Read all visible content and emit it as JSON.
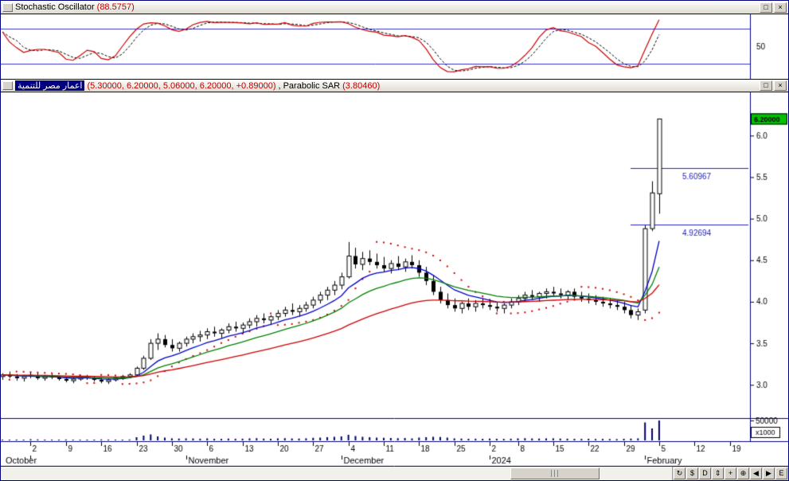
{
  "stoch_panel": {
    "title": "Stochastic Oscillator ",
    "value_text": "(88.5757)",
    "axis_label": "50"
  },
  "main_panel": {
    "security_name": "اعمار مصر للتنمية",
    "ohlc_text": "(5.30000, 6.20000, 5.06000, 6.20000, +0.89000)",
    "sar_label": ", Parabolic SAR ",
    "sar_value_text": "(3.80460)",
    "last_price_badge": "6.20000",
    "hlines": [
      {
        "value": 5.60967,
        "label": "5.60967"
      },
      {
        "value": 4.92694,
        "label": "4.92694"
      }
    ]
  },
  "window_controls": {
    "restore_glyph": "□",
    "close_glyph": "×"
  },
  "toolbar": {
    "buttons": [
      {
        "name": "refresh-button",
        "glyph": "↻"
      },
      {
        "name": "price-display-button",
        "glyph": "$"
      },
      {
        "name": "periodicity-daily-button",
        "glyph": "D"
      },
      {
        "name": "rescale-button",
        "glyph": "⇕"
      },
      {
        "name": "crosshair-button",
        "glyph": "+"
      },
      {
        "name": "zoom-in-button",
        "glyph": "⊕"
      },
      {
        "name": "scroll-left-button",
        "glyph": "◀"
      },
      {
        "name": "scroll-right-button",
        "glyph": "▶"
      },
      {
        "name": "explorer-button",
        "glyph": "E"
      }
    ]
  },
  "colors": {
    "panel_line": "#000080",
    "level_line": "#3333bb",
    "alert_line": "#2222bb",
    "ma_fast": "#0000cc",
    "ma_mid": "#008000",
    "ma_slow": "#cc0000",
    "sar": "#cc0000",
    "stoch_k": "#cc0000",
    "stoch_d": "#000000",
    "volume": "#000066",
    "badge_bg": "#00c000"
  },
  "chart_data": {
    "type": "candlestick",
    "title": "اعمار مصر للتنمية",
    "last_price": 6.2,
    "last_ohlc": {
      "open": 5.3,
      "high": 6.2,
      "low": 5.06,
      "close": 6.2,
      "change": 0.89
    },
    "ylim": [
      2.6,
      6.52
    ],
    "volume_max": 50,
    "volume_axis_label": "50000",
    "volume_units_label": "x1000",
    "y_ticks": [
      {
        "value": 6.0,
        "label": "6.0"
      },
      {
        "value": 5.5,
        "label": "5.5"
      },
      {
        "value": 5.0,
        "label": "5.0"
      },
      {
        "value": 4.5,
        "label": "4.5"
      },
      {
        "value": 4.0,
        "label": "4.0"
      },
      {
        "value": 3.5,
        "label": "3.5"
      },
      {
        "value": 3.0,
        "label": "3.0"
      }
    ],
    "x_ticks": [
      {
        "i": 4,
        "label": "2"
      },
      {
        "i": 9,
        "label": "9"
      },
      {
        "i": 14,
        "label": "16"
      },
      {
        "i": 19,
        "label": "23"
      },
      {
        "i": 24,
        "label": "30"
      },
      {
        "i": 29,
        "label": "6"
      },
      {
        "i": 34,
        "label": "13"
      },
      {
        "i": 39,
        "label": "20"
      },
      {
        "i": 44,
        "label": "27"
      },
      {
        "i": 49,
        "label": "4"
      },
      {
        "i": 54,
        "label": "11"
      },
      {
        "i": 59,
        "label": "18"
      },
      {
        "i": 64,
        "label": "25"
      },
      {
        "i": 69,
        "label": "2"
      },
      {
        "i": 73,
        "label": "8"
      },
      {
        "i": 78,
        "label": "15"
      },
      {
        "i": 83,
        "label": "22"
      },
      {
        "i": 88,
        "label": "29"
      },
      {
        "i": 93,
        "label": "5"
      },
      {
        "i": 98,
        "label": "12"
      },
      {
        "i": 103,
        "label": "19"
      }
    ],
    "month_labels": [
      {
        "i": 4,
        "label": "October",
        "pin": 6
      },
      {
        "i": 26,
        "label": "November"
      },
      {
        "i": 48,
        "label": "December"
      },
      {
        "i": 69,
        "label": "2024"
      },
      {
        "i": 91,
        "label": "February"
      }
    ],
    "indicators": {
      "ema_fast": 9,
      "ema_mid": 18,
      "ema_slow": 40
    },
    "parabolic_sar": {
      "step": 0.02,
      "max": 0.2,
      "current": 3.8046
    },
    "stochastic": {
      "k_period": 14,
      "slowing": 3,
      "d_period": 3,
      "overbought": 80,
      "oversold": 20,
      "current": 88.5757
    },
    "ohlc": [
      [
        3.1,
        3.14,
        3.06,
        3.12,
        2.0
      ],
      [
        3.12,
        3.16,
        3.08,
        3.1,
        1.8
      ],
      [
        3.1,
        3.13,
        3.05,
        3.08,
        2.1
      ],
      [
        3.08,
        3.12,
        3.04,
        3.1,
        1.9
      ],
      [
        3.12,
        3.15,
        3.08,
        3.1,
        3.0
      ],
      [
        3.1,
        3.14,
        3.06,
        3.08,
        2.5
      ],
      [
        3.08,
        3.12,
        3.05,
        3.1,
        2.0
      ],
      [
        3.1,
        3.13,
        3.07,
        3.09,
        2.0
      ],
      [
        3.09,
        3.11,
        3.05,
        3.07,
        1.8
      ],
      [
        3.07,
        3.1,
        3.03,
        3.05,
        2.2
      ],
      [
        3.05,
        3.09,
        3.02,
        3.07,
        2.0
      ],
      [
        3.07,
        3.11,
        3.05,
        3.09,
        1.9
      ],
      [
        3.09,
        3.12,
        3.06,
        3.08,
        1.7
      ],
      [
        3.08,
        3.1,
        3.04,
        3.06,
        2.0
      ],
      [
        3.06,
        3.09,
        3.02,
        3.04,
        2.4
      ],
      [
        3.04,
        3.08,
        3.01,
        3.06,
        2.1
      ],
      [
        3.06,
        3.1,
        3.04,
        3.08,
        1.8
      ],
      [
        3.08,
        3.12,
        3.06,
        3.1,
        2.0
      ],
      [
        3.1,
        3.14,
        3.08,
        3.12,
        2.3
      ],
      [
        3.12,
        3.22,
        3.1,
        3.2,
        8.0
      ],
      [
        3.2,
        3.35,
        3.18,
        3.32,
        12.0
      ],
      [
        3.32,
        3.55,
        3.3,
        3.5,
        15.0
      ],
      [
        3.5,
        3.62,
        3.42,
        3.55,
        10.0
      ],
      [
        3.55,
        3.6,
        3.45,
        3.48,
        7.0
      ],
      [
        3.48,
        3.55,
        3.4,
        3.44,
        5.0
      ],
      [
        3.44,
        3.52,
        3.4,
        3.5,
        4.5
      ],
      [
        3.5,
        3.58,
        3.46,
        3.55,
        5.0
      ],
      [
        3.55,
        3.62,
        3.5,
        3.58,
        4.8
      ],
      [
        3.58,
        3.65,
        3.52,
        3.6,
        4.2
      ],
      [
        3.6,
        3.68,
        3.55,
        3.64,
        5.0
      ],
      [
        3.64,
        3.7,
        3.58,
        3.62,
        4.0
      ],
      [
        3.62,
        3.68,
        3.56,
        3.66,
        3.8
      ],
      [
        3.66,
        3.74,
        3.62,
        3.7,
        4.5
      ],
      [
        3.7,
        3.76,
        3.64,
        3.68,
        4.0
      ],
      [
        3.68,
        3.75,
        3.62,
        3.72,
        4.2
      ],
      [
        3.72,
        3.8,
        3.68,
        3.76,
        5.0
      ],
      [
        3.76,
        3.84,
        3.7,
        3.8,
        5.5
      ],
      [
        3.8,
        3.86,
        3.74,
        3.78,
        4.5
      ],
      [
        3.78,
        3.84,
        3.72,
        3.82,
        4.0
      ],
      [
        3.82,
        3.9,
        3.78,
        3.86,
        5.0
      ],
      [
        3.86,
        3.94,
        3.82,
        3.9,
        5.5
      ],
      [
        3.9,
        3.98,
        3.84,
        3.88,
        4.8
      ],
      [
        3.88,
        3.96,
        3.82,
        3.92,
        4.5
      ],
      [
        3.92,
        4.0,
        3.88,
        3.96,
        5.2
      ],
      [
        3.96,
        4.06,
        3.92,
        4.02,
        6.5
      ],
      [
        4.02,
        4.12,
        3.98,
        4.08,
        7.0
      ],
      [
        4.08,
        4.18,
        4.02,
        4.14,
        8.0
      ],
      [
        4.14,
        4.25,
        4.08,
        4.2,
        9.0
      ],
      [
        4.2,
        4.35,
        4.15,
        4.3,
        10.0
      ],
      [
        4.3,
        4.72,
        4.28,
        4.55,
        14.0
      ],
      [
        4.55,
        4.65,
        4.4,
        4.45,
        11.0
      ],
      [
        4.45,
        4.6,
        4.38,
        4.52,
        9.0
      ],
      [
        4.52,
        4.62,
        4.44,
        4.48,
        8.0
      ],
      [
        4.48,
        4.58,
        4.4,
        4.44,
        7.0
      ],
      [
        4.44,
        4.54,
        4.36,
        4.4,
        6.5
      ],
      [
        4.4,
        4.5,
        4.34,
        4.46,
        6.0
      ],
      [
        4.46,
        4.55,
        4.38,
        4.42,
        5.5
      ],
      [
        4.42,
        4.52,
        4.36,
        4.48,
        6.0
      ],
      [
        4.48,
        4.56,
        4.4,
        4.44,
        5.0
      ],
      [
        4.44,
        4.5,
        4.3,
        4.35,
        7.0
      ],
      [
        4.35,
        4.42,
        4.2,
        4.25,
        8.0
      ],
      [
        4.25,
        4.32,
        4.08,
        4.12,
        9.0
      ],
      [
        4.12,
        4.18,
        3.98,
        4.02,
        8.5
      ],
      [
        4.02,
        4.1,
        3.92,
        3.96,
        7.0
      ],
      [
        3.96,
        4.04,
        3.88,
        3.92,
        5.0
      ],
      [
        3.92,
        4.0,
        3.86,
        3.98,
        4.5
      ],
      [
        3.98,
        4.04,
        3.9,
        3.94,
        4.0
      ],
      [
        3.94,
        4.02,
        3.88,
        3.98,
        4.2
      ],
      [
        3.98,
        4.04,
        3.92,
        3.96,
        4.0
      ],
      [
        3.96,
        4.02,
        3.9,
        3.94,
        4.5
      ],
      [
        3.94,
        4.0,
        3.88,
        3.92,
        4.0
      ],
      [
        3.92,
        3.98,
        3.86,
        3.96,
        3.8
      ],
      [
        3.96,
        4.04,
        3.92,
        4.0,
        4.2
      ],
      [
        4.0,
        4.08,
        3.96,
        4.04,
        5.0
      ],
      [
        4.04,
        4.12,
        4.0,
        4.08,
        5.5
      ],
      [
        4.08,
        4.14,
        4.02,
        4.06,
        4.8
      ],
      [
        4.06,
        4.12,
        4.0,
        4.1,
        4.5
      ],
      [
        4.1,
        4.16,
        4.04,
        4.12,
        5.0
      ],
      [
        4.12,
        4.18,
        4.06,
        4.1,
        5.2
      ],
      [
        4.1,
        4.16,
        4.04,
        4.08,
        4.5
      ],
      [
        4.08,
        4.14,
        4.02,
        4.12,
        4.2
      ],
      [
        4.12,
        4.16,
        4.04,
        4.06,
        4.0
      ],
      [
        4.06,
        4.12,
        4.0,
        4.04,
        3.8
      ],
      [
        4.04,
        4.1,
        3.98,
        4.02,
        4.0
      ],
      [
        4.02,
        4.08,
        3.96,
        4.0,
        3.5
      ],
      [
        4.0,
        4.06,
        3.94,
        3.98,
        3.8
      ],
      [
        3.98,
        4.04,
        3.92,
        3.96,
        3.5
      ],
      [
        3.96,
        4.02,
        3.9,
        3.94,
        3.2
      ],
      [
        3.94,
        4.0,
        3.86,
        3.9,
        4.0
      ],
      [
        3.9,
        3.96,
        3.8,
        3.84,
        4.5
      ],
      [
        3.84,
        3.92,
        3.78,
        3.88,
        5.0
      ],
      [
        3.9,
        4.92,
        3.86,
        4.88,
        45.0
      ],
      [
        4.88,
        5.45,
        4.85,
        5.31,
        30.0
      ],
      [
        5.3,
        6.2,
        5.06,
        6.2,
        50.0
      ]
    ]
  }
}
